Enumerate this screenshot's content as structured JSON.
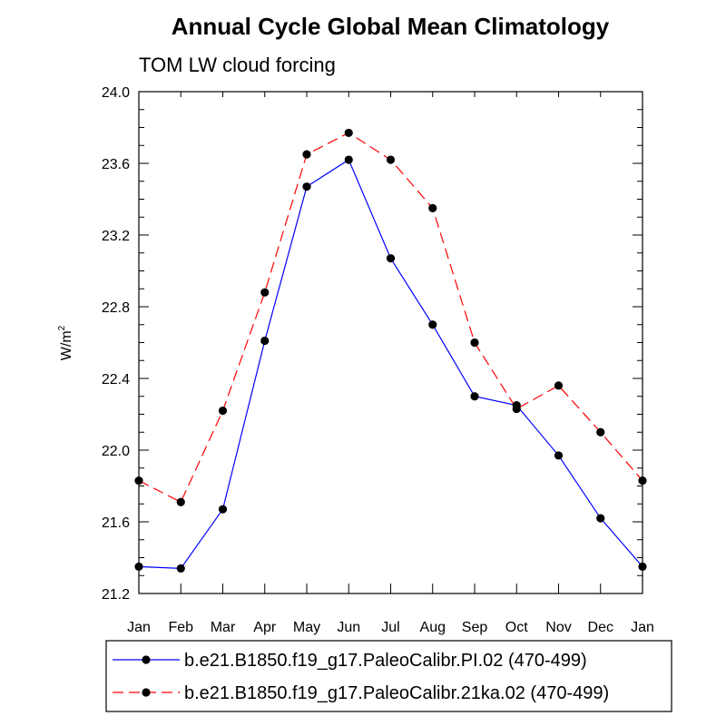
{
  "chart_data": {
    "type": "line",
    "title": "Annual Cycle Global Mean Climatology",
    "subtitle": "TOM LW cloud forcing",
    "ylabel": "W/m",
    "ylabel_superscript": "2",
    "xlabel": "",
    "ylim": [
      21.2,
      24.0
    ],
    "yticks": [
      "21.2",
      "21.6",
      "22.0",
      "22.4",
      "22.8",
      "23.2",
      "23.6",
      "24.0"
    ],
    "ytick_values": [
      21.2,
      21.6,
      22.0,
      22.4,
      22.8,
      23.2,
      23.6,
      24.0
    ],
    "categories": [
      "Jan",
      "Feb",
      "Mar",
      "Apr",
      "May",
      "Jun",
      "Jul",
      "Aug",
      "Sep",
      "Oct",
      "Nov",
      "Dec",
      "Jan"
    ],
    "series": [
      {
        "name": "b.e21.B1850.f19_g17.PaleoCalibr.PI.02 (470-499)",
        "color": "#0000ff",
        "style": "solid",
        "values": [
          21.35,
          21.34,
          21.67,
          22.61,
          23.47,
          23.62,
          23.07,
          22.7,
          22.3,
          22.25,
          21.97,
          21.62,
          21.35
        ]
      },
      {
        "name": "b.e21.B1850.f19_g17.PaleoCalibr.21ka.02 (470-499)",
        "color": "#ff0000",
        "style": "dashed",
        "values": [
          21.83,
          21.71,
          22.22,
          22.88,
          23.65,
          23.77,
          23.62,
          23.35,
          22.6,
          22.23,
          22.36,
          22.1,
          21.83
        ]
      }
    ]
  }
}
